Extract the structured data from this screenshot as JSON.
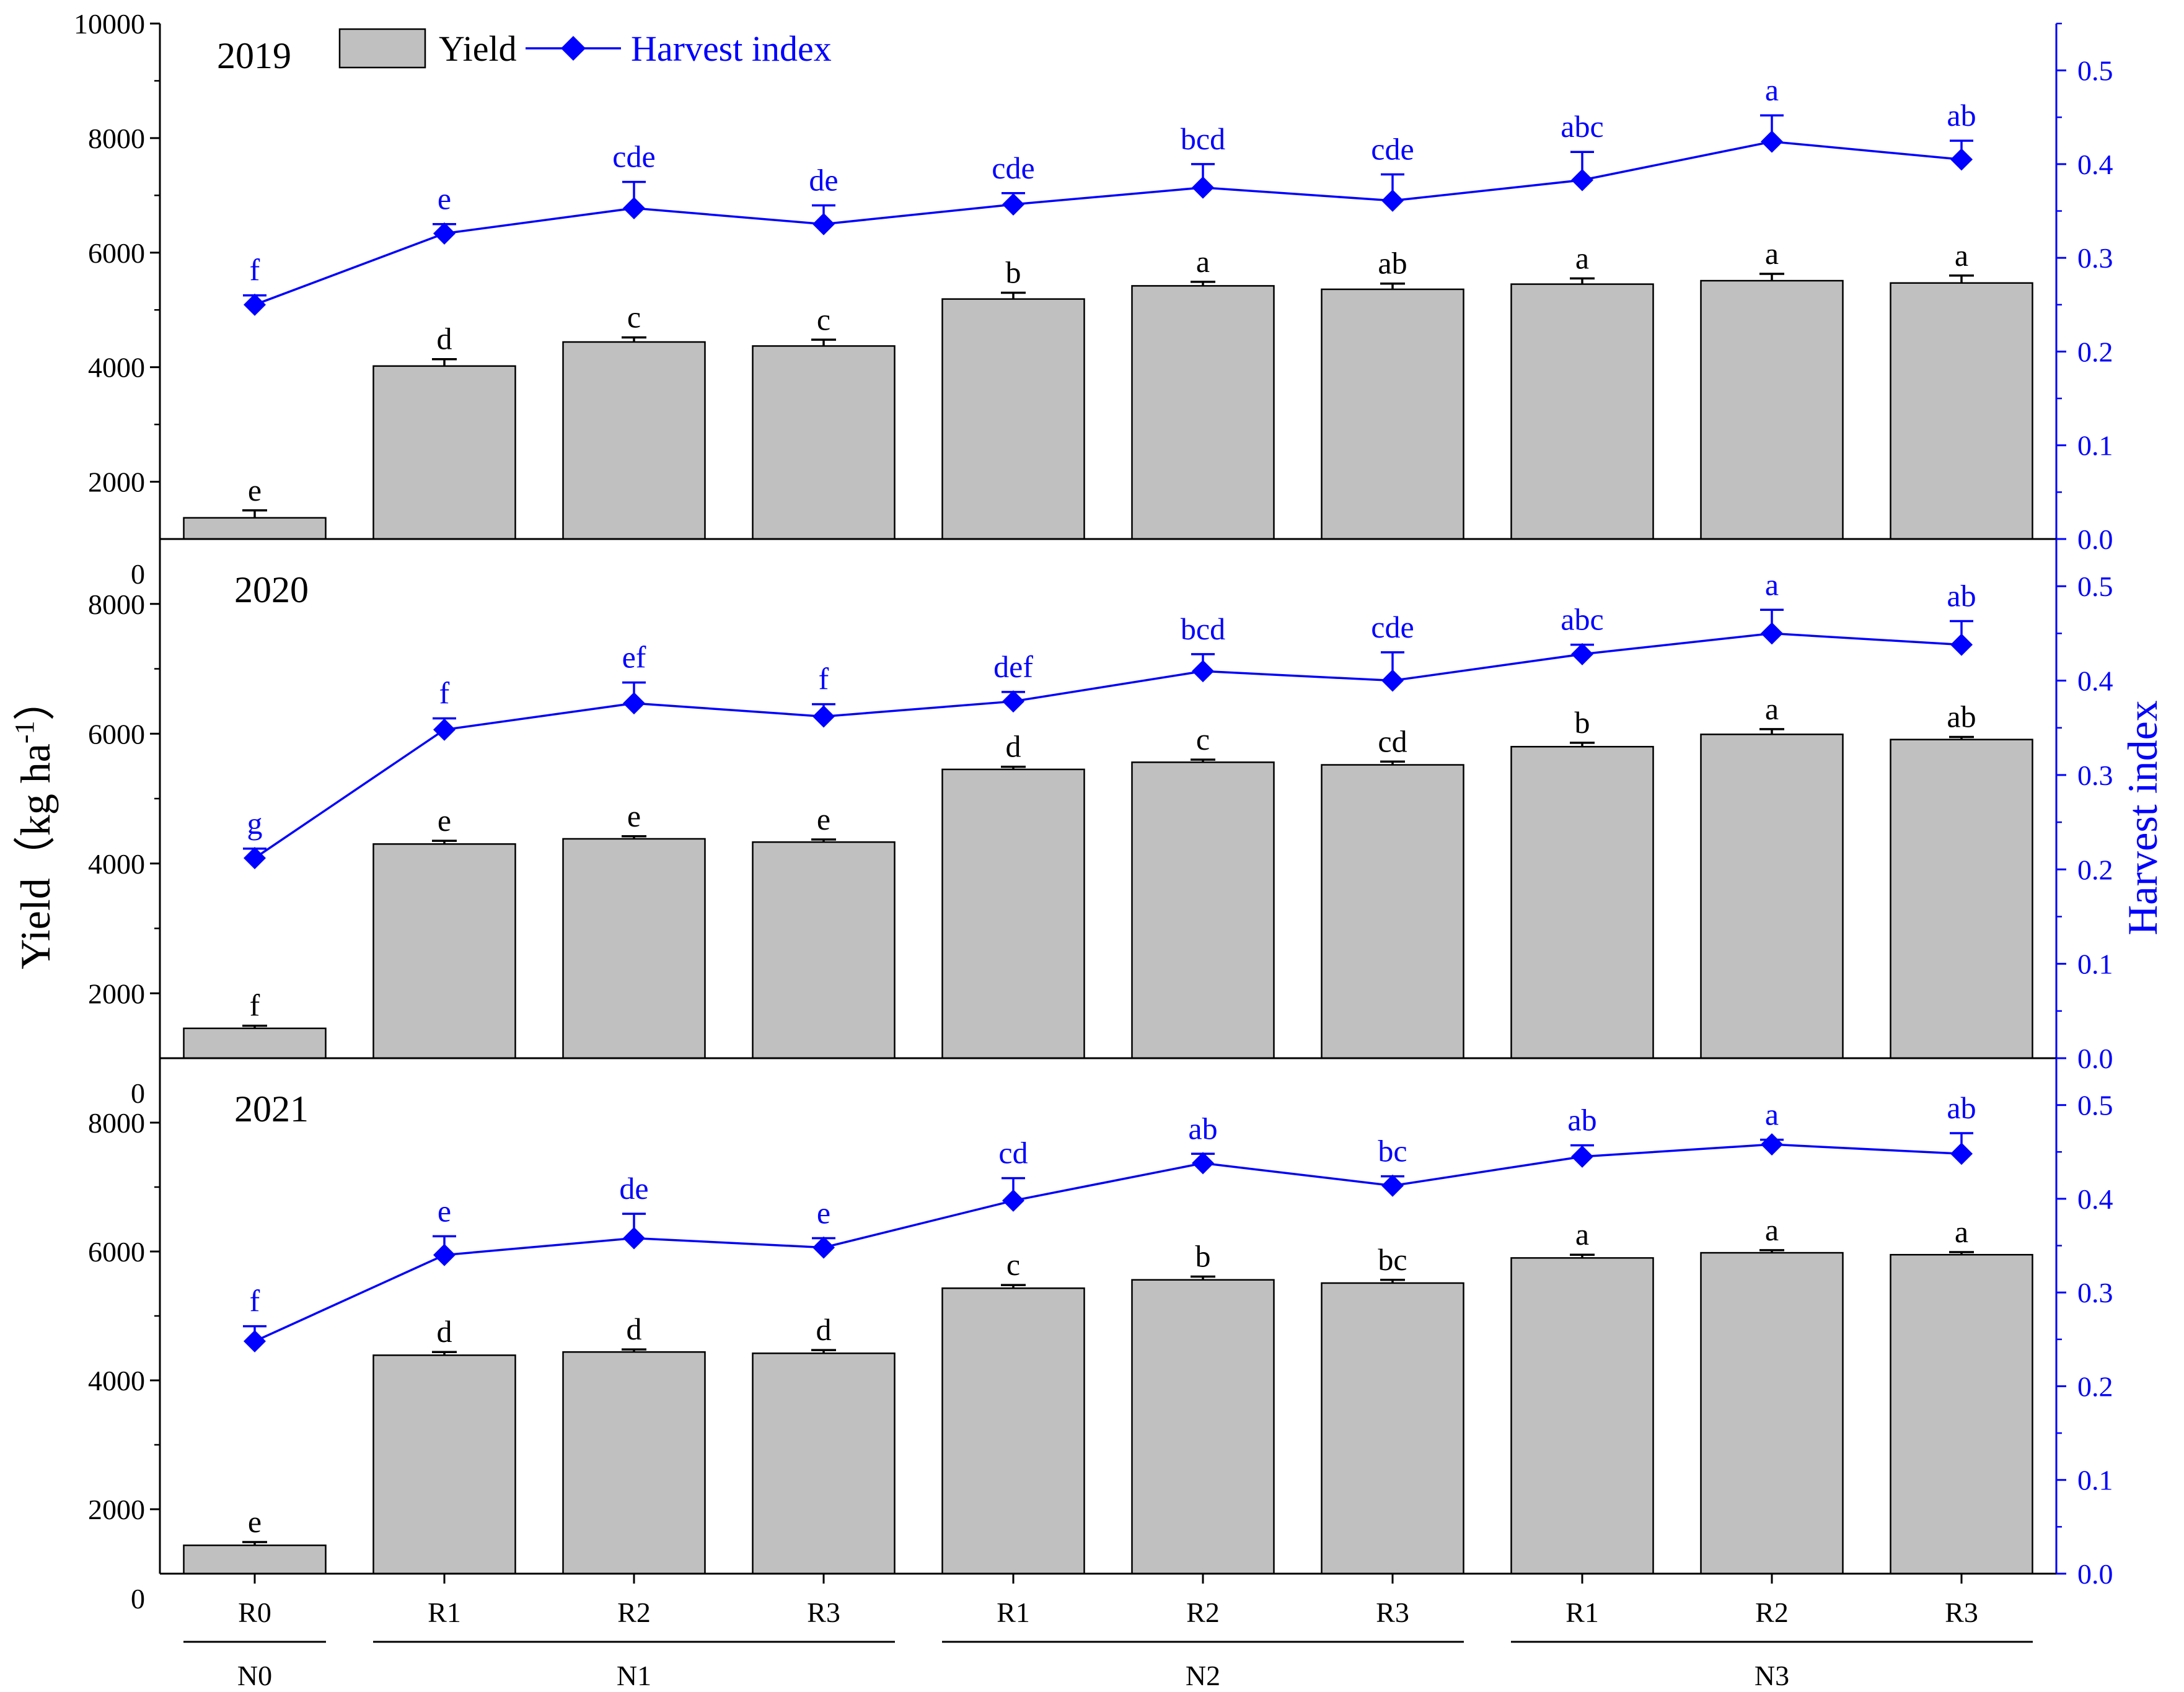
{
  "chart_data": {
    "type": "bar+line",
    "legend": {
      "yield_label": "Yield",
      "hi_label": "Harvest index"
    },
    "y_left_label": "Yield（kg ha",
    "y_left_label_sup": "-1",
    "y_left_label_close": "）",
    "y_right_label": "Harvest index",
    "categories": [
      "R0",
      "R1",
      "R2",
      "R3",
      "R1",
      "R2",
      "R3",
      "R1",
      "R2",
      "R3"
    ],
    "groups": [
      {
        "label": "N0",
        "from": 0,
        "to": 0
      },
      {
        "label": "N1",
        "from": 1,
        "to": 3
      },
      {
        "label": "N2",
        "from": 4,
        "to": 6
      },
      {
        "label": "N3",
        "from": 7,
        "to": 9
      }
    ],
    "left_axis": {
      "min": 1000,
      "panels": [
        {
          "max": 10000,
          "ticks": [
            2000,
            4000,
            6000,
            8000,
            10000
          ]
        },
        {
          "max": 9000,
          "ticks": [
            2000,
            4000,
            6000,
            8000
          ],
          "top_tick_label": "0"
        },
        {
          "max": 9000,
          "ticks": [
            2000,
            4000,
            6000,
            8000
          ],
          "top_tick_label": "0",
          "bottom_tick_label": "0"
        }
      ]
    },
    "right_axis": {
      "min": 0.0,
      "max": 0.55,
      "ticks": [
        0.0,
        0.1,
        0.2,
        0.3,
        0.4,
        0.5
      ],
      "tick_labels": [
        "0.0",
        "0.1",
        "0.2",
        "0.3",
        "0.4",
        "0.5"
      ]
    },
    "panels": [
      {
        "year": "2019",
        "yield": [
          1370,
          4020,
          4440,
          4370,
          5190,
          5420,
          5360,
          5450,
          5510,
          5470
        ],
        "yield_err": [
          130,
          120,
          80,
          110,
          110,
          70,
          100,
          100,
          120,
          130
        ],
        "yield_letters": [
          "e",
          "d",
          "c",
          "c",
          "b",
          "a",
          "ab",
          "a",
          "a",
          "a"
        ],
        "hi": [
          0.25,
          0.326,
          0.353,
          0.336,
          0.357,
          0.375,
          0.361,
          0.383,
          0.424,
          0.405
        ],
        "hi_err": [
          0.01,
          0.01,
          0.028,
          0.02,
          0.012,
          0.025,
          0.028,
          0.03,
          0.028,
          0.02
        ],
        "hi_letters": [
          "f",
          "e",
          "cde",
          "de",
          "cde",
          "bcd",
          "cde",
          "abc",
          "a",
          "ab"
        ]
      },
      {
        "year": "2020",
        "yield": [
          1460,
          4300,
          4380,
          4330,
          5450,
          5560,
          5520,
          5800,
          5990,
          5910
        ],
        "yield_err": [
          40,
          50,
          40,
          40,
          40,
          40,
          50,
          60,
          80,
          40
        ],
        "yield_letters": [
          "f",
          "e",
          "e",
          "e",
          "d",
          "c",
          "cd",
          "b",
          "a",
          "ab"
        ],
        "hi": [
          0.212,
          0.348,
          0.376,
          0.362,
          0.378,
          0.41,
          0.4,
          0.428,
          0.45,
          0.438
        ],
        "hi_err": [
          0.01,
          0.012,
          0.022,
          0.013,
          0.01,
          0.018,
          0.03,
          0.01,
          0.025,
          0.025
        ],
        "hi_letters": [
          "g",
          "f",
          "ef",
          "f",
          "def",
          "bcd",
          "cde",
          "abc",
          "a",
          "ab"
        ]
      },
      {
        "year": "2021",
        "yield": [
          1440,
          4390,
          4440,
          4420,
          5430,
          5560,
          5510,
          5900,
          5980,
          5950
        ],
        "yield_err": [
          50,
          50,
          40,
          50,
          50,
          50,
          50,
          50,
          40,
          40
        ],
        "yield_letters": [
          "e",
          "d",
          "d",
          "d",
          "c",
          "b",
          "bc",
          "a",
          "a",
          "a"
        ],
        "hi": [
          0.248,
          0.34,
          0.358,
          0.348,
          0.398,
          0.438,
          0.414,
          0.445,
          0.458,
          0.448
        ],
        "hi_err": [
          0.016,
          0.02,
          0.026,
          0.01,
          0.024,
          0.01,
          0.01,
          0.012,
          0.005,
          0.022
        ],
        "hi_letters": [
          "f",
          "e",
          "de",
          "e",
          "cd",
          "ab",
          "bc",
          "ab",
          "a",
          "ab"
        ]
      }
    ]
  }
}
